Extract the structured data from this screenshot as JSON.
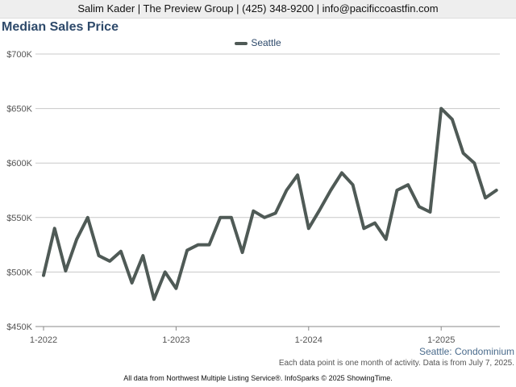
{
  "header": {
    "contact": "Salim Kader | The Preview Group | (425) 348-9200 | info@pacificcoastfin.com"
  },
  "chart_data": {
    "type": "line",
    "title": "Median Sales Price",
    "subtitle": "Seattle: Condominium",
    "note": "Each data point is one month of activity. Data is from July 7, 2025.",
    "footer": "All data from Northwest Multiple Listing Service®. InfoSparks © 2025 ShowingTime.",
    "legend_position": "top-center",
    "grid": true,
    "ylim": [
      450000,
      700000
    ],
    "y_ticks": [
      {
        "value": 450000,
        "label": "$450K"
      },
      {
        "value": 500000,
        "label": "$500K"
      },
      {
        "value": 550000,
        "label": "$550K"
      },
      {
        "value": 600000,
        "label": "$600K"
      },
      {
        "value": 650000,
        "label": "$650K"
      },
      {
        "value": 700000,
        "label": "$700K"
      }
    ],
    "x_ticks": [
      {
        "index": 0,
        "label": "1-2022"
      },
      {
        "index": 12,
        "label": "1-2023"
      },
      {
        "index": 24,
        "label": "1-2024"
      },
      {
        "index": 36,
        "label": "1-2025"
      }
    ],
    "x": [
      "1-2022",
      "2-2022",
      "3-2022",
      "4-2022",
      "5-2022",
      "6-2022",
      "7-2022",
      "8-2022",
      "9-2022",
      "10-2022",
      "11-2022",
      "12-2022",
      "1-2023",
      "2-2023",
      "3-2023",
      "4-2023",
      "5-2023",
      "6-2023",
      "7-2023",
      "8-2023",
      "9-2023",
      "10-2023",
      "11-2023",
      "12-2023",
      "1-2024",
      "2-2024",
      "3-2024",
      "4-2024",
      "5-2024",
      "6-2024",
      "7-2024",
      "8-2024",
      "9-2024",
      "10-2024",
      "11-2024",
      "12-2024",
      "1-2025",
      "2-2025",
      "3-2025",
      "4-2025",
      "5-2025",
      "6-2025"
    ],
    "series": [
      {
        "name": "Seattle",
        "color": "#4f5a56",
        "values": [
          497000,
          540000,
          501000,
          530000,
          550000,
          515000,
          510000,
          519000,
          490000,
          515000,
          475000,
          500000,
          485000,
          520000,
          525000,
          525000,
          550000,
          550000,
          518000,
          556000,
          550000,
          554000,
          575000,
          589000,
          540000,
          557000,
          575000,
          591000,
          580000,
          540000,
          545000,
          530000,
          575000,
          580000,
          560000,
          555000,
          650000,
          640000,
          609000,
          600000,
          568000,
          575000
        ]
      }
    ]
  }
}
